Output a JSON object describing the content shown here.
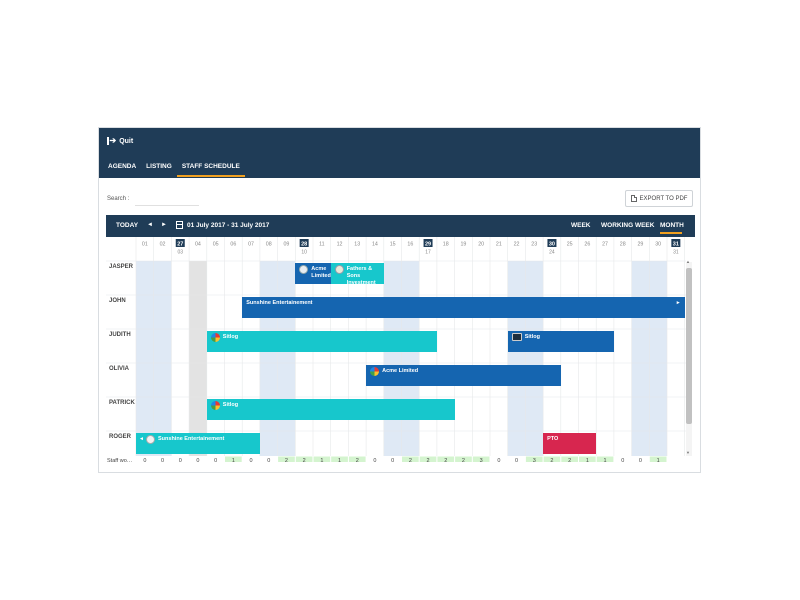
{
  "topbar": {
    "quit_label": "Quit",
    "tabs": [
      {
        "label": "AGENDA"
      },
      {
        "label": "LISTING"
      },
      {
        "label": "STAFF SCHEDULE"
      }
    ]
  },
  "toolbar": {
    "search_label": "Search :",
    "search_value": "",
    "export_label": "EXPORT TO PDF"
  },
  "schedule": {
    "today_label": "TODAY",
    "prev_glyph": "◄",
    "next_glyph": "►",
    "date_range": "01 July 2017 - 31 July 2017",
    "views": [
      "WEEK",
      "WORKING WEEK",
      "MONTH"
    ],
    "active_view": "MONTH",
    "days": [
      "01",
      "02",
      "03",
      "04",
      "05",
      "06",
      "07",
      "08",
      "09",
      "10",
      "11",
      "12",
      "13",
      "14",
      "15",
      "16",
      "17",
      "18",
      "19",
      "20",
      "21",
      "22",
      "23",
      "24",
      "25",
      "26",
      "27",
      "28",
      "29",
      "30",
      "31"
    ],
    "weekend_days": [
      1,
      2,
      8,
      9,
      15,
      16,
      22,
      23,
      29,
      30
    ],
    "today_day": 4,
    "week_markers": [
      {
        "day": 3,
        "label": "27",
        "week": "03"
      },
      {
        "day": 10,
        "label": "28",
        "week": "10"
      },
      {
        "day": 17,
        "label": "29",
        "week": "17"
      },
      {
        "day": 24,
        "label": "30",
        "week": "24"
      },
      {
        "day": 31,
        "label": "31",
        "week": "31"
      }
    ],
    "resources": [
      "JASPER",
      "JOHN",
      "JUDITH",
      "OLIVIA",
      "PATRICK",
      "ROGER"
    ],
    "events": [
      {
        "resource": 0,
        "start": 10,
        "end": 11,
        "label": "Acme\nLimited",
        "color": "#1565b0",
        "icon": "search"
      },
      {
        "resource": 0,
        "start": 12,
        "end": 14,
        "label": "Fathers &\nSons Investment",
        "color": "#17c7cc",
        "icon": "fathers"
      },
      {
        "resource": 1,
        "start": 7,
        "end": 31,
        "label": "Sunshine Entertainement",
        "color": "#1565b0",
        "icon": "none",
        "continues_right": true
      },
      {
        "resource": 2,
        "start": 5,
        "end": 17,
        "label": "Sitlog",
        "color": "#17c7cc",
        "icon": "sitlog"
      },
      {
        "resource": 2,
        "start": 22,
        "end": 27,
        "label": "Sitlog",
        "color": "#1565b0",
        "icon": "monitor"
      },
      {
        "resource": 3,
        "start": 14,
        "end": 24,
        "label": "Acme Limited",
        "color": "#1565b0",
        "icon": "sitlog"
      },
      {
        "resource": 4,
        "start": 5,
        "end": 18,
        "label": "Sitlog",
        "color": "#17c7cc",
        "icon": "sitlog"
      },
      {
        "resource": 5,
        "start": 1,
        "end": 7,
        "label": "Sunshine Entertainement",
        "color": "#17c7cc",
        "icon": "sunshine",
        "continues_left": true
      },
      {
        "resource": 5,
        "start": 24,
        "end": 26,
        "label": "PTO",
        "color": "#d7264f",
        "icon": "none"
      }
    ],
    "footer_label": "Staff wo…",
    "footer_values": [
      0,
      0,
      0,
      0,
      0,
      1,
      0,
      0,
      2,
      2,
      1,
      1,
      2,
      0,
      0,
      2,
      2,
      2,
      2,
      3,
      0,
      0,
      3,
      2,
      2,
      1,
      1,
      0,
      0,
      1,
      ""
    ],
    "colors": {
      "header_bg": "#1f3c57",
      "weekend_bg": "#dfe9f5",
      "today_bg": "#e3e3e3",
      "footer_green": "#d4f4cf",
      "accent": "#f0a020"
    }
  }
}
